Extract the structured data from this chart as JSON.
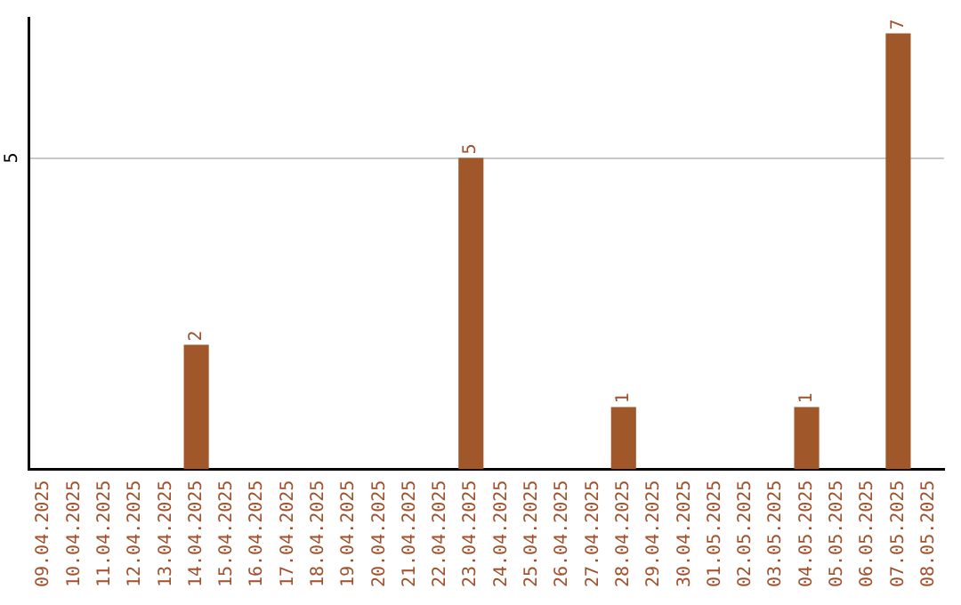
{
  "chart_data": {
    "type": "bar",
    "categories": [
      "09.04.2025",
      "10.04.2025",
      "11.04.2025",
      "12.04.2025",
      "13.04.2025",
      "14.04.2025",
      "15.04.2025",
      "16.04.2025",
      "17.04.2025",
      "18.04.2025",
      "19.04.2025",
      "20.04.2025",
      "21.04.2025",
      "22.04.2025",
      "23.04.2025",
      "24.04.2025",
      "25.04.2025",
      "26.04.2025",
      "27.04.2025",
      "28.04.2025",
      "29.04.2025",
      "30.04.2025",
      "01.05.2025",
      "02.05.2025",
      "03.05.2025",
      "04.05.2025",
      "05.05.2025",
      "06.05.2025",
      "07.05.2025",
      "08.05.2025"
    ],
    "values": [
      0,
      0,
      0,
      0,
      0,
      2,
      0,
      0,
      0,
      0,
      0,
      0,
      0,
      0,
      5,
      0,
      0,
      0,
      0,
      1,
      0,
      0,
      0,
      0,
      0,
      1,
      0,
      0,
      7,
      0
    ],
    "value_labels": [
      null,
      null,
      null,
      null,
      null,
      "2",
      null,
      null,
      null,
      null,
      null,
      null,
      null,
      null,
      "5",
      null,
      null,
      null,
      null,
      "1",
      null,
      null,
      null,
      null,
      null,
      "1",
      null,
      null,
      "7",
      null
    ],
    "color": "#a0572a",
    "ylim": [
      0,
      7.25
    ],
    "yticks": [
      5
    ],
    "grid": "y",
    "legend": false
  }
}
